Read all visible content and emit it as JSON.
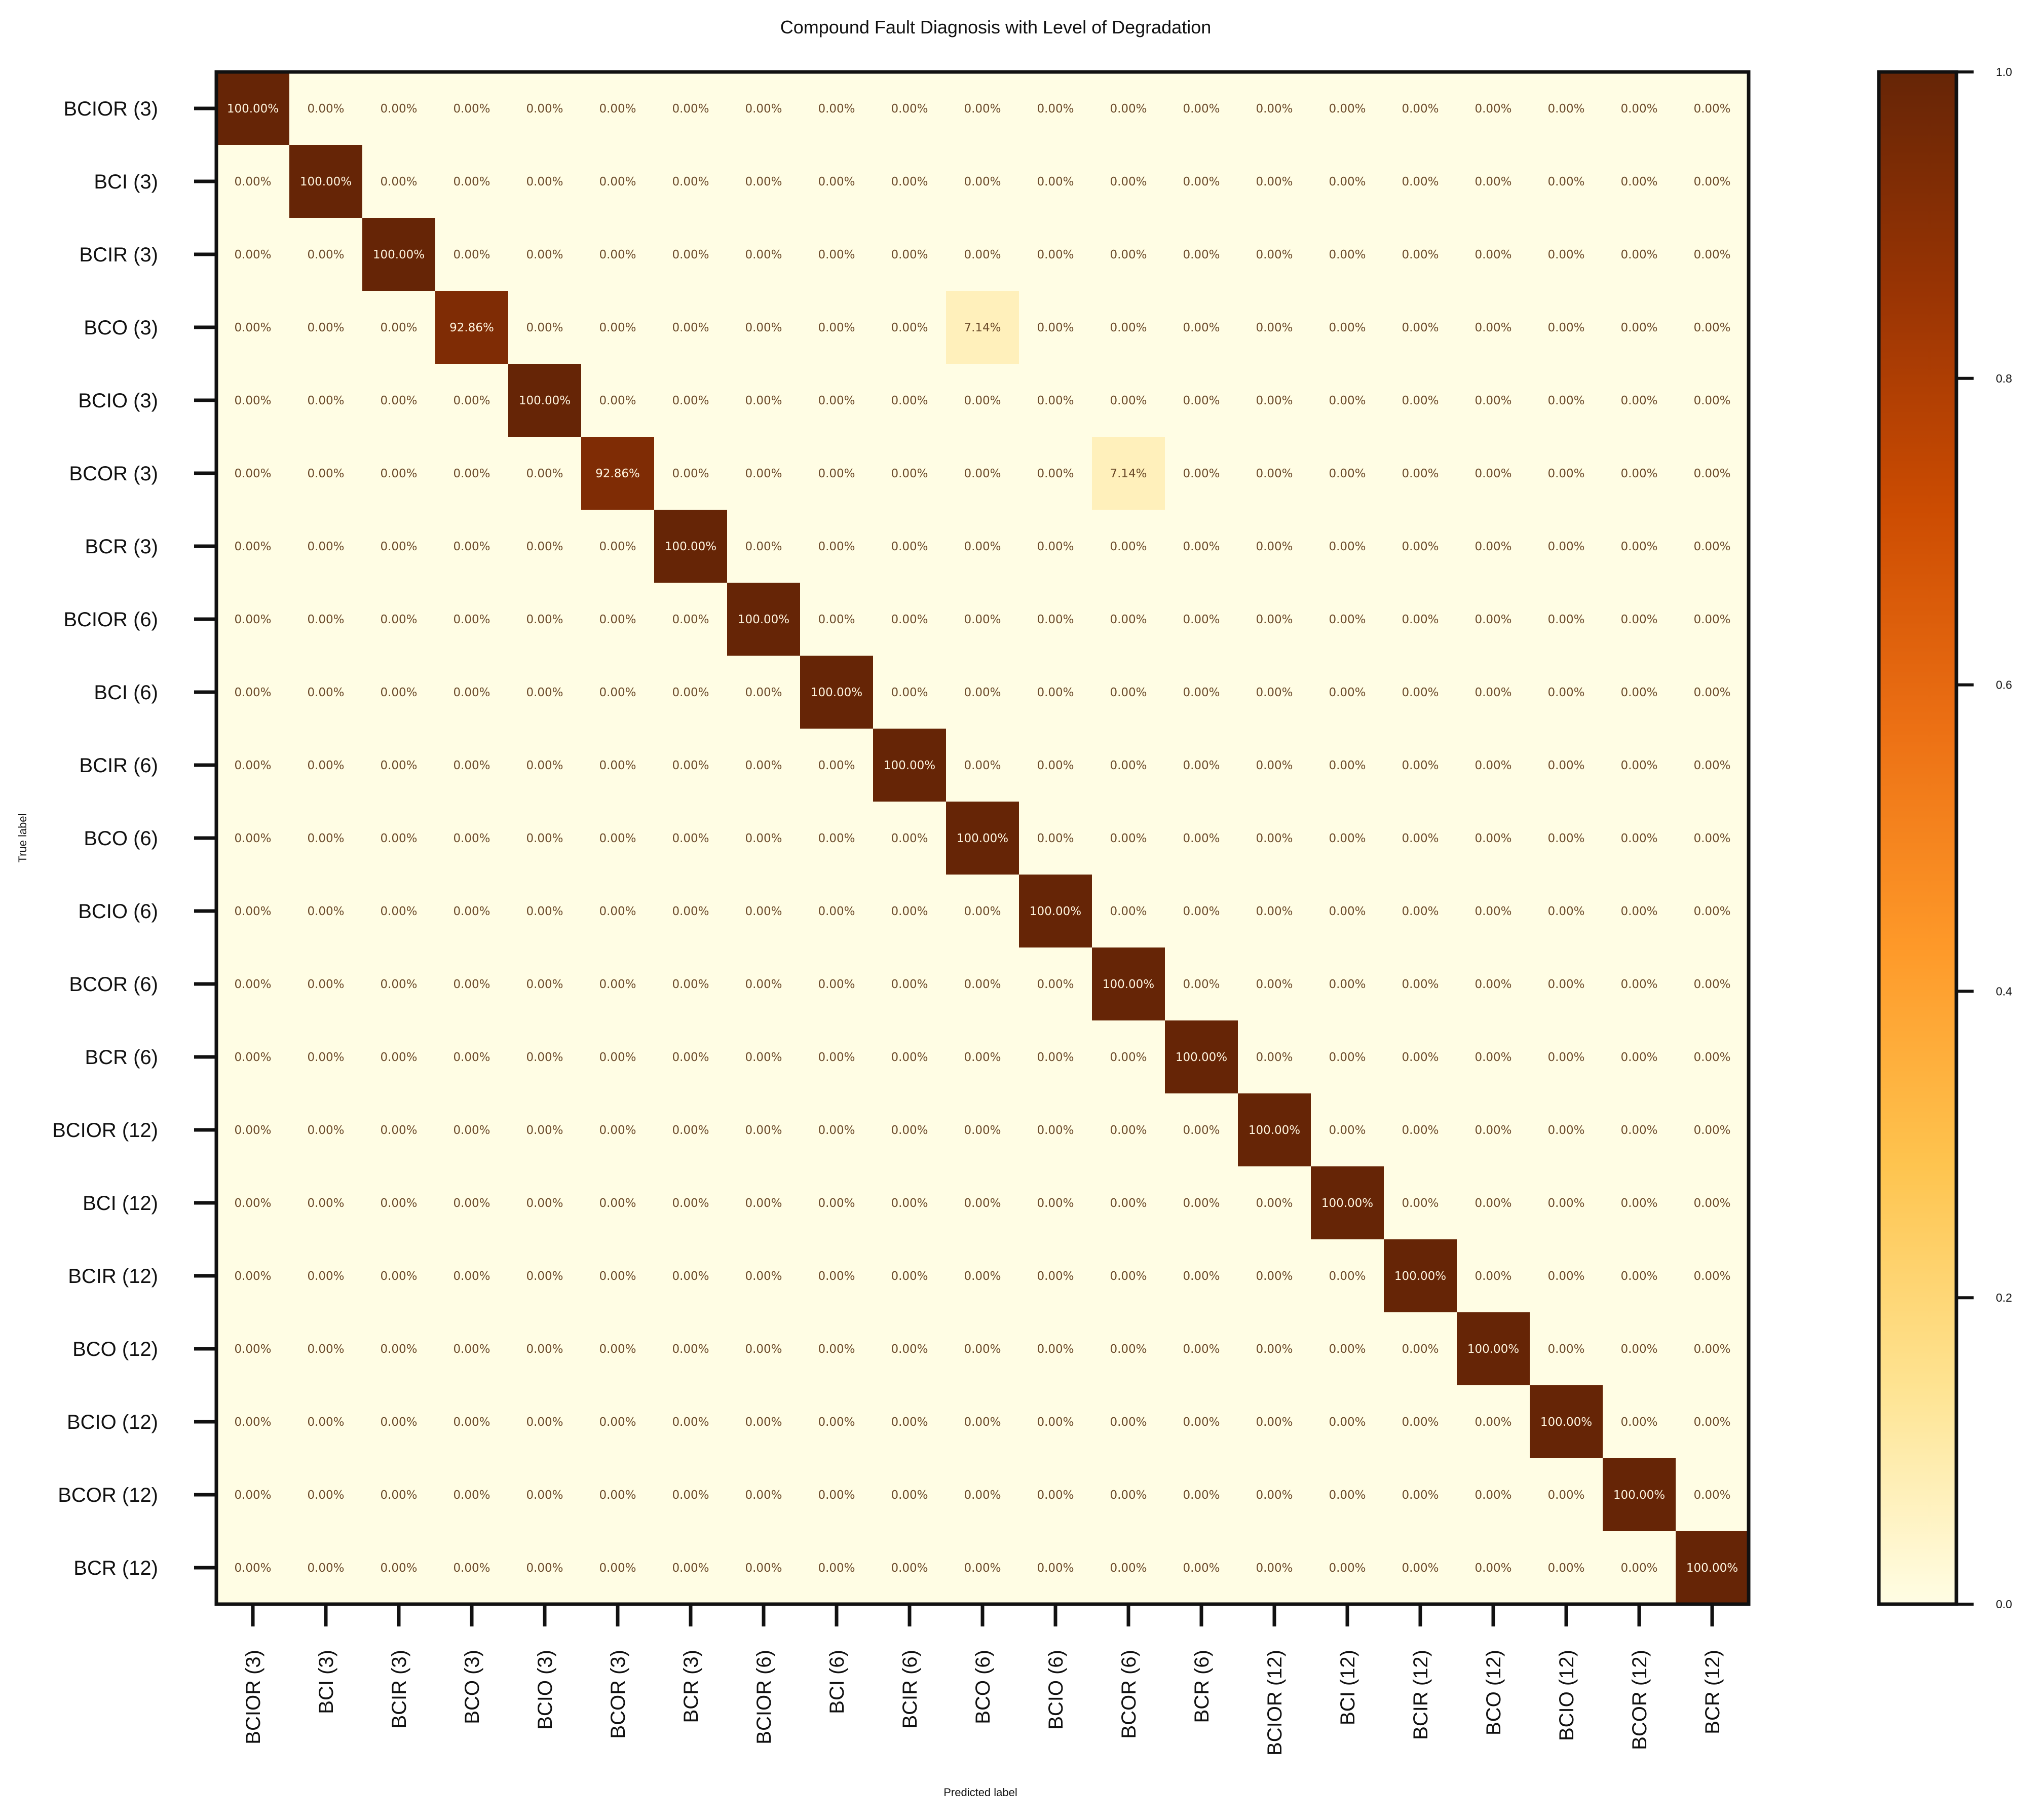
{
  "chart_data": {
    "type": "heatmap",
    "title": "Compound Fault Diagnosis with Level of Degradation",
    "xlabel": "Predicted label",
    "ylabel": "True label",
    "labels": [
      "BCIOR (3)",
      "BCI (3)",
      "BCIR (3)",
      "BCO (3)",
      "BCIO (3)",
      "BCOR (3)",
      "BCR (3)",
      "BCIOR (6)",
      "BCI (6)",
      "BCIR (6)",
      "BCO (6)",
      "BCIO (6)",
      "BCOR (6)",
      "BCR (6)",
      "BCIOR (12)",
      "BCI (12)",
      "BCIR (12)",
      "BCO (12)",
      "BCIO (12)",
      "BCOR (12)",
      "BCR (12)"
    ],
    "diagonal_values": [
      1.0,
      1.0,
      1.0,
      0.9286,
      1.0,
      0.9286,
      1.0,
      1.0,
      1.0,
      1.0,
      1.0,
      1.0,
      1.0,
      1.0,
      1.0,
      1.0,
      1.0,
      1.0,
      1.0,
      1.0,
      1.0
    ],
    "off_diagonal": [
      {
        "row": 3,
        "col": 10,
        "value": 0.0714
      },
      {
        "row": 5,
        "col": 12,
        "value": 0.0714
      }
    ],
    "value_format": "percent_2dp",
    "colorbar": {
      "range": [
        0.0,
        1.0
      ],
      "ticks": [
        "0.0",
        "0.2",
        "0.4",
        "0.6",
        "0.8",
        "1.0"
      ],
      "colormap": [
        "#fffde4",
        "#fee391",
        "#fec44f",
        "#fe9929",
        "#ec7014",
        "#cc4c02",
        "#993404",
        "#662506"
      ]
    }
  }
}
